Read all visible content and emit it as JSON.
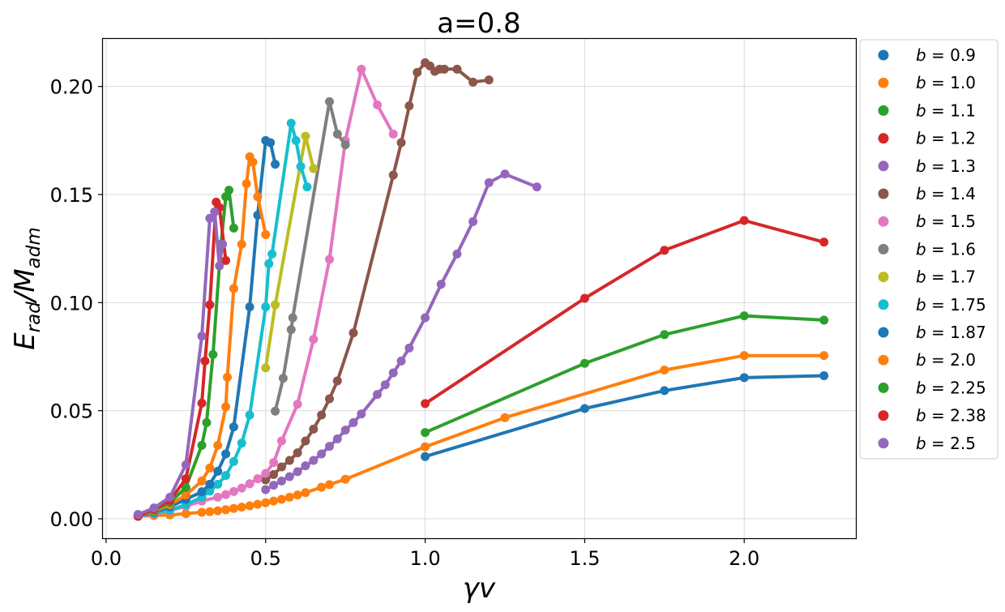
{
  "chart_data": {
    "type": "line",
    "title": "a=0.8",
    "xlabel": "γv",
    "ylabel_main": "E",
    "ylabel_sub1": "rad",
    "ylabel_mid": "/M",
    "ylabel_sub2": "adm",
    "xlim": [
      -0.01,
      2.35
    ],
    "ylim": [
      -0.009,
      0.222
    ],
    "xticks": [
      0.0,
      0.5,
      1.0,
      1.5,
      2.0
    ],
    "xtick_labels": [
      "0.0",
      "0.5",
      "1.0",
      "1.5",
      "2.0"
    ],
    "yticks": [
      0.0,
      0.05,
      0.1,
      0.15,
      0.2
    ],
    "ytick_labels": [
      "0.00",
      "0.05",
      "0.10",
      "0.15",
      "0.20"
    ],
    "grid": true,
    "legend_position": "outside-right",
    "series": [
      {
        "name": "b = 0.9",
        "b": "0.9",
        "color": "#1f77b4",
        "x": [
          1.0,
          1.5,
          1.75,
          2.0,
          2.25
        ],
        "y": [
          0.0288,
          0.051,
          0.0593,
          0.0653,
          0.0662
        ]
      },
      {
        "name": "b = 1.0",
        "b": "1.0",
        "color": "#ff7f0e",
        "x": [
          0.1,
          0.15,
          0.2,
          0.25,
          0.3,
          0.325,
          0.35,
          0.375,
          0.4,
          0.425,
          0.45,
          0.475,
          0.5,
          0.525,
          0.55,
          0.575,
          0.6,
          0.625,
          0.675,
          0.7,
          0.75,
          1.0,
          1.25,
          1.75,
          2.0,
          2.25
        ],
        "y": [
          0.0012,
          0.0015,
          0.0018,
          0.0024,
          0.003,
          0.0033,
          0.0037,
          0.0042,
          0.0048,
          0.0054,
          0.006,
          0.0067,
          0.0074,
          0.0082,
          0.009,
          0.01,
          0.011,
          0.0121,
          0.0146,
          0.0158,
          0.0183,
          0.0333,
          0.0468,
          0.0688,
          0.0755,
          0.0755
        ]
      },
      {
        "name": "b = 1.1",
        "b": "1.1",
        "color": "#2ca02c",
        "x": [
          1.0,
          1.5,
          1.75,
          2.0,
          2.25
        ],
        "y": [
          0.0399,
          0.0719,
          0.0852,
          0.0939,
          0.0919
        ]
      },
      {
        "name": "b = 1.2",
        "b": "1.2",
        "color": "#d62728",
        "x": [
          1.0,
          1.5,
          1.75,
          2.0,
          2.25
        ],
        "y": [
          0.0533,
          0.102,
          0.1242,
          0.138,
          0.128
        ]
      },
      {
        "name": "b = 1.3",
        "b": "1.3",
        "color": "#9467bd",
        "x": [
          0.5,
          0.525,
          0.55,
          0.575,
          0.6,
          0.625,
          0.65,
          0.675,
          0.7,
          0.725,
          0.75,
          0.775,
          0.8,
          0.85,
          0.875,
          0.9,
          0.925,
          0.95,
          1.0,
          1.05,
          1.1,
          1.15,
          1.2,
          1.25,
          1.35
        ],
        "y": [
          0.0135,
          0.0155,
          0.0175,
          0.0195,
          0.0218,
          0.0245,
          0.027,
          0.03,
          0.0335,
          0.037,
          0.041,
          0.0445,
          0.0485,
          0.0575,
          0.062,
          0.0675,
          0.073,
          0.079,
          0.093,
          0.1085,
          0.1225,
          0.1375,
          0.1555,
          0.1595,
          0.1535
        ]
      },
      {
        "name": "b = 1.4",
        "b": "1.4",
        "color": "#8c564b",
        "x": [
          0.5,
          0.525,
          0.55,
          0.575,
          0.6,
          0.625,
          0.65,
          0.675,
          0.7,
          0.725,
          0.775,
          0.9,
          0.925,
          0.95,
          0.975,
          1.0,
          1.015,
          1.03,
          1.045,
          1.06,
          1.1,
          1.15,
          1.2
        ],
        "y": [
          0.018,
          0.0205,
          0.024,
          0.027,
          0.0305,
          0.036,
          0.0415,
          0.048,
          0.0555,
          0.0638,
          0.086,
          0.159,
          0.174,
          0.191,
          0.2065,
          0.211,
          0.2095,
          0.207,
          0.208,
          0.208,
          0.208,
          0.202,
          0.203
        ]
      },
      {
        "name": "b = 1.5",
        "b": "1.5",
        "color": "#e377c2",
        "x": [
          0.1,
          0.15,
          0.2,
          0.25,
          0.3,
          0.35,
          0.375,
          0.4,
          0.425,
          0.45,
          0.475,
          0.5,
          0.525,
          0.55,
          0.6,
          0.65,
          0.7,
          0.75,
          0.8,
          0.85,
          0.9
        ],
        "y": [
          0.0012,
          0.0022,
          0.0038,
          0.0058,
          0.0082,
          0.01,
          0.0112,
          0.0126,
          0.0142,
          0.0162,
          0.0185,
          0.021,
          0.026,
          0.036,
          0.053,
          0.083,
          0.12,
          0.175,
          0.208,
          0.1915,
          0.178
        ]
      },
      {
        "name": "b = 1.6",
        "b": "1.6",
        "color": "#7f7f7f",
        "x": [
          0.53,
          0.555,
          0.58,
          0.585,
          0.7,
          0.725,
          0.75
        ],
        "y": [
          0.0498,
          0.065,
          0.0875,
          0.093,
          0.193,
          0.178,
          0.173
        ]
      },
      {
        "name": "b = 1.7",
        "b": "1.7",
        "color": "#bcbd22",
        "x": [
          0.5,
          0.53,
          0.625,
          0.65
        ],
        "y": [
          0.0698,
          0.099,
          0.177,
          0.162
        ]
      },
      {
        "name": "b = 1.75",
        "b": "1.75",
        "color": "#17becf",
        "x": [
          0.1,
          0.15,
          0.2,
          0.25,
          0.3,
          0.325,
          0.35,
          0.375,
          0.4,
          0.425,
          0.45,
          0.5,
          0.51,
          0.52,
          0.58,
          0.595,
          0.61,
          0.63
        ],
        "y": [
          0.0012,
          0.0025,
          0.004,
          0.0065,
          0.01,
          0.0128,
          0.016,
          0.02,
          0.0265,
          0.035,
          0.048,
          0.098,
          0.118,
          0.1225,
          0.183,
          0.175,
          0.163,
          0.1535
        ]
      },
      {
        "name": "b = 1.87",
        "b": "1.87",
        "color": "#1f77b4",
        "x": [
          0.1,
          0.15,
          0.2,
          0.25,
          0.3,
          0.325,
          0.35,
          0.375,
          0.4,
          0.45,
          0.475,
          0.5,
          0.515,
          0.53
        ],
        "y": [
          0.0012,
          0.003,
          0.0055,
          0.009,
          0.0125,
          0.016,
          0.022,
          0.03,
          0.0425,
          0.098,
          0.1405,
          0.175,
          0.174,
          0.164
        ]
      },
      {
        "name": "b = 2.0",
        "b": "2.0",
        "color": "#ff7f0e",
        "x": [
          0.1,
          0.15,
          0.2,
          0.25,
          0.3,
          0.325,
          0.35,
          0.375,
          0.38,
          0.4,
          0.425,
          0.44,
          0.45,
          0.46,
          0.475,
          0.5
        ],
        "y": [
          0.0012,
          0.0035,
          0.0065,
          0.011,
          0.0175,
          0.0235,
          0.034,
          0.0518,
          0.0655,
          0.1065,
          0.127,
          0.155,
          0.1675,
          0.165,
          0.149,
          0.1315
        ]
      },
      {
        "name": "b = 2.25",
        "b": "2.25",
        "color": "#2ca02c",
        "x": [
          0.1,
          0.15,
          0.2,
          0.25,
          0.3,
          0.315,
          0.335,
          0.36,
          0.375,
          0.385,
          0.4
        ],
        "y": [
          0.0012,
          0.004,
          0.0075,
          0.0145,
          0.034,
          0.0445,
          0.076,
          0.127,
          0.149,
          0.152,
          0.1345
        ]
      },
      {
        "name": "b = 2.38",
        "b": "2.38",
        "color": "#d62728",
        "x": [
          0.1,
          0.15,
          0.2,
          0.25,
          0.3,
          0.31,
          0.325,
          0.345,
          0.355,
          0.375
        ],
        "y": [
          0.0012,
          0.0045,
          0.0085,
          0.0185,
          0.0535,
          0.073,
          0.099,
          0.1465,
          0.144,
          0.1195
        ]
      },
      {
        "name": "b = 2.5",
        "b": "2.5",
        "color": "#9467bd",
        "x": [
          0.1,
          0.15,
          0.2,
          0.25,
          0.3,
          0.325,
          0.34,
          0.355,
          0.365
        ],
        "y": [
          0.002,
          0.005,
          0.01,
          0.025,
          0.0845,
          0.139,
          0.142,
          0.117,
          0.127
        ]
      }
    ]
  }
}
